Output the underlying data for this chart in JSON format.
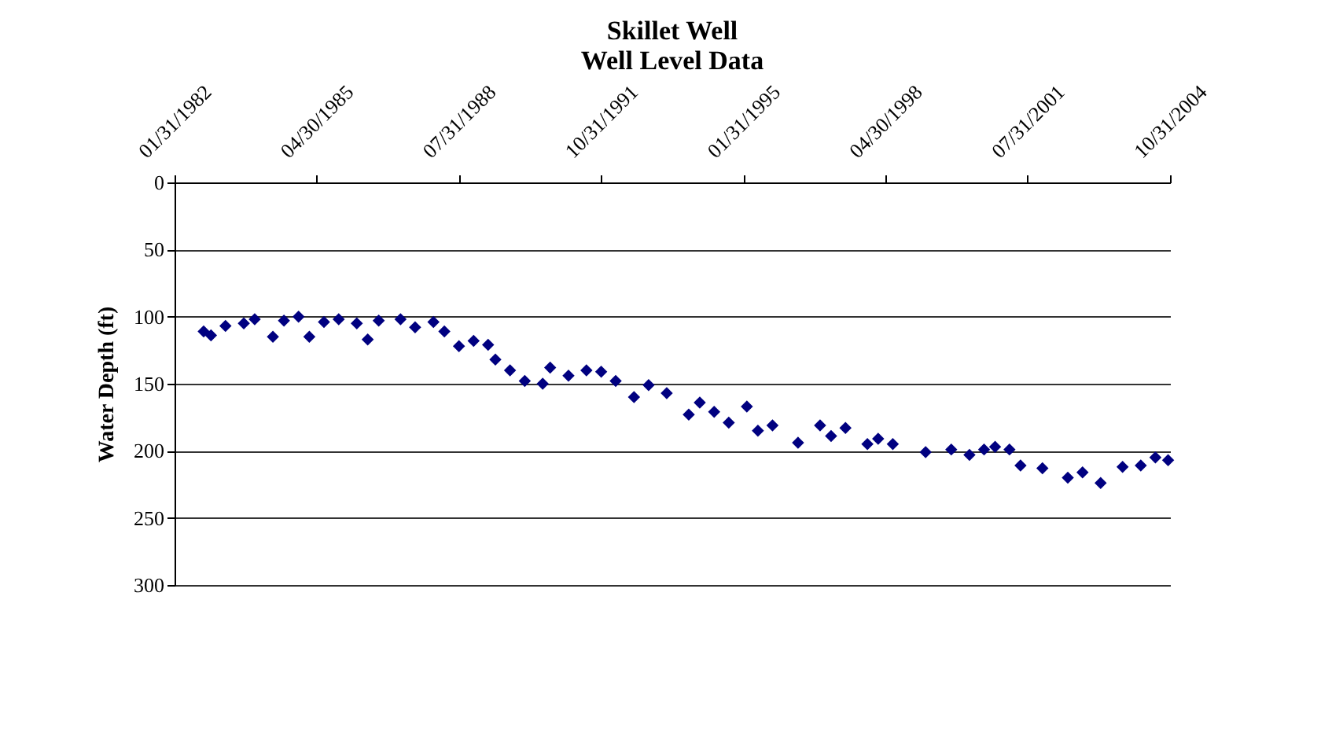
{
  "chart_data": {
    "type": "scatter",
    "title": "Skillet Well",
    "subtitle": "Well Level Data",
    "ylabel": "Water Depth (ft)",
    "marker": "diamond",
    "grid": "y",
    "xlim": [
      "1982-01-31",
      "2004-10-31"
    ],
    "xticks": [
      {
        "value": "1982-01-31",
        "label": "01/31/1982"
      },
      {
        "value": "1985-04-30",
        "label": "04/30/1985"
      },
      {
        "value": "1988-07-31",
        "label": "07/31/1988"
      },
      {
        "value": "1991-10-31",
        "label": "10/31/1991"
      },
      {
        "value": "1995-01-31",
        "label": "01/31/1995"
      },
      {
        "value": "1998-04-30",
        "label": "04/30/1998"
      },
      {
        "value": "2001-07-31",
        "label": "07/31/2001"
      },
      {
        "value": "2004-10-31",
        "label": "10/31/2004"
      }
    ],
    "ylim": [
      300,
      0
    ],
    "yticks": [
      0,
      50,
      100,
      150,
      200,
      250,
      300
    ],
    "series": [
      {
        "color": "#000080",
        "x": [
          "1982-10",
          "1982-12",
          "1983-04",
          "1983-09",
          "1983-12",
          "1984-05",
          "1984-08",
          "1984-12",
          "1985-03",
          "1985-07",
          "1985-11",
          "1986-04",
          "1986-07",
          "1986-10",
          "1987-04",
          "1987-08",
          "1988-01",
          "1988-04",
          "1988-08",
          "1988-12",
          "1989-04",
          "1989-06",
          "1989-10",
          "1990-02",
          "1990-07",
          "1990-09",
          "1991-02",
          "1991-07",
          "1991-11",
          "1992-03",
          "1992-08",
          "1992-12",
          "1993-05",
          "1993-11",
          "1994-02",
          "1994-06",
          "1994-10",
          "1995-03",
          "1995-06",
          "1995-10",
          "1996-05",
          "1996-11",
          "1997-02",
          "1997-06",
          "1997-12",
          "1998-03",
          "1998-07",
          "1999-04",
          "1999-11",
          "2000-04",
          "2000-08",
          "2000-11",
          "2001-03",
          "2001-06",
          "2001-12",
          "2002-07",
          "2002-11",
          "2003-04",
          "2003-10",
          "2004-03",
          "2004-07",
          "2004-10-15"
        ],
        "values": [
          111,
          114,
          107,
          105,
          102,
          115,
          103,
          100,
          115,
          104,
          102,
          105,
          117,
          103,
          102,
          108,
          104,
          111,
          122,
          118,
          121,
          132,
          140,
          148,
          150,
          138,
          144,
          140,
          141,
          148,
          160,
          151,
          157,
          173,
          164,
          171,
          179,
          167,
          185,
          181,
          194,
          181,
          189,
          183,
          195,
          191,
          195,
          201,
          199,
          203,
          199,
          197,
          199,
          211,
          213,
          220,
          216,
          224,
          212,
          211,
          205,
          207
        ]
      }
    ]
  }
}
